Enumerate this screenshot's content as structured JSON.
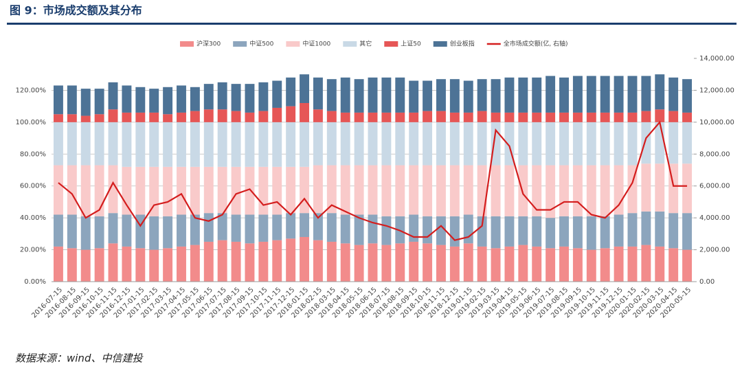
{
  "title": "图 9：市场成交额及其分布",
  "source": "数据来源：wind、中信建投",
  "chart_data": {
    "type": "bar",
    "categories": [
      "2016-07-15",
      "2016-08-15",
      "2016-09-15",
      "2016-10-15",
      "2016-11-15",
      "2016-12-15",
      "2017-01-15",
      "2017-02-15",
      "2017-03-15",
      "2017-04-15",
      "2017-05-15",
      "2017-06-15",
      "2017-07-15",
      "2017-08-15",
      "2017-09-15",
      "2017-10-15",
      "2017-11-15",
      "2017-12-15",
      "2018-01-15",
      "2018-02-15",
      "2018-03-15",
      "2018-04-15",
      "2018-05-15",
      "2018-06-15",
      "2018-07-15",
      "2018-08-15",
      "2018-09-15",
      "2018-10-15",
      "2018-11-15",
      "2018-12-15",
      "2019-01-15",
      "2019-02-15",
      "2019-03-15",
      "2019-04-15",
      "2019-05-15",
      "2019-06-15",
      "2019-07-15",
      "2019-08-15",
      "2019-09-15",
      "2019-10-15",
      "2019-11-15",
      "2019-12-15",
      "2020-01-15",
      "2020-02-15",
      "2020-03-15",
      "2020-04-15",
      "2020-05-15"
    ],
    "series": [
      {
        "name": "沪深300",
        "color": "#f28b8b",
        "values": [
          22,
          21,
          20,
          21,
          24,
          22,
          21,
          20,
          21,
          22,
          23,
          25,
          26,
          25,
          24,
          25,
          26,
          27,
          28,
          26,
          25,
          24,
          23,
          24,
          23,
          24,
          25,
          24,
          23,
          22,
          24,
          22,
          21,
          22,
          23,
          22,
          21,
          22,
          21,
          20,
          21,
          22,
          22,
          23,
          22,
          21,
          20
        ]
      },
      {
        "name": "中证500",
        "color": "#8ca5bd",
        "values": [
          20,
          21,
          21,
          20,
          19,
          20,
          21,
          21,
          20,
          20,
          19,
          18,
          17,
          17,
          18,
          17,
          16,
          16,
          15,
          17,
          18,
          18,
          19,
          18,
          18,
          17,
          17,
          17,
          18,
          19,
          18,
          19,
          20,
          19,
          18,
          19,
          19,
          19,
          20,
          21,
          20,
          20,
          21,
          21,
          22,
          22,
          23
        ]
      },
      {
        "name": "中证1000",
        "color": "#f9caca",
        "values": [
          31,
          31,
          32,
          32,
          30,
          30,
          30,
          31,
          31,
          30,
          30,
          29,
          29,
          30,
          30,
          30,
          30,
          29,
          29,
          30,
          30,
          31,
          31,
          31,
          32,
          32,
          31,
          32,
          32,
          32,
          31,
          32,
          32,
          32,
          32,
          32,
          33,
          32,
          32,
          32,
          32,
          31,
          30,
          30,
          30,
          31,
          31
        ]
      },
      {
        "name": "其它",
        "color": "#c9d9e6",
        "values": [
          27,
          27,
          27,
          27,
          27,
          28,
          28,
          28,
          28,
          28,
          28,
          28,
          28,
          28,
          28,
          28,
          28,
          28,
          28,
          27,
          27,
          27,
          27,
          27,
          27,
          27,
          27,
          27,
          27,
          27,
          27,
          27,
          27,
          27,
          27,
          27,
          27,
          27,
          27,
          27,
          27,
          27,
          27,
          26,
          26,
          26,
          26
        ]
      },
      {
        "name": "上证50",
        "color": "#e65656",
        "values": [
          5,
          5,
          4,
          5,
          8,
          6,
          6,
          6,
          5,
          6,
          7,
          8,
          8,
          7,
          6,
          7,
          9,
          10,
          12,
          8,
          7,
          6,
          6,
          6,
          6,
          6,
          6,
          7,
          7,
          6,
          6,
          7,
          6,
          6,
          6,
          6,
          6,
          6,
          6,
          6,
          6,
          6,
          6,
          7,
          8,
          7,
          6
        ]
      },
      {
        "name": "创业板指",
        "color": "#4d7396",
        "values": [
          18,
          18,
          17,
          16,
          17,
          17,
          16,
          15,
          17,
          17,
          15,
          16,
          17,
          17,
          18,
          18,
          17,
          18,
          18,
          20,
          20,
          22,
          21,
          22,
          22,
          22,
          20,
          19,
          20,
          21,
          20,
          20,
          21,
          22,
          22,
          22,
          23,
          22,
          23,
          23,
          23,
          23,
          23,
          22,
          22,
          21,
          21
        ]
      },
      {
        "name": "全市场成交额(亿, 右轴)",
        "color": "#d41d1d",
        "type": "line",
        "axis": "y2",
        "values": [
          6200,
          5500,
          4000,
          4500,
          6200,
          4800,
          3500,
          4800,
          5000,
          5500,
          4000,
          3800,
          4200,
          5500,
          5800,
          4800,
          5000,
          4200,
          5200,
          4000,
          4800,
          4400,
          4000,
          3700,
          3500,
          3200,
          2800,
          2800,
          3500,
          2600,
          2800,
          3500,
          9500,
          8500,
          5500,
          4500,
          4500,
          5000,
          5000,
          4200,
          4000,
          4800,
          6200,
          9000,
          10000,
          6000,
          6000
        ]
      }
    ],
    "ylim": [
      0,
      140
    ],
    "yticks": [
      {
        "value": 0,
        "label": "0.00%"
      },
      {
        "value": 20,
        "label": "20.00%"
      },
      {
        "value": 40,
        "label": "40.00%"
      },
      {
        "value": 60,
        "label": "60.00%"
      },
      {
        "value": 80,
        "label": "80.00%"
      },
      {
        "value": 100,
        "label": "100.00%"
      },
      {
        "value": 120,
        "label": "120.00%"
      }
    ],
    "y2lim": [
      0,
      14000
    ],
    "y2ticks": [
      {
        "value": 0,
        "label": "0.00"
      },
      {
        "value": 2000,
        "label": "2,000.00"
      },
      {
        "value": 4000,
        "label": "4,000.00"
      },
      {
        "value": 6000,
        "label": "6,000.00"
      },
      {
        "value": 8000,
        "label": "8,000.00"
      },
      {
        "value": 10000,
        "label": "10,000.00"
      },
      {
        "value": 12000,
        "label": "12,000.00"
      },
      {
        "value": 14000,
        "label": "14,000.00"
      }
    ],
    "grid": true,
    "legend": "top"
  }
}
